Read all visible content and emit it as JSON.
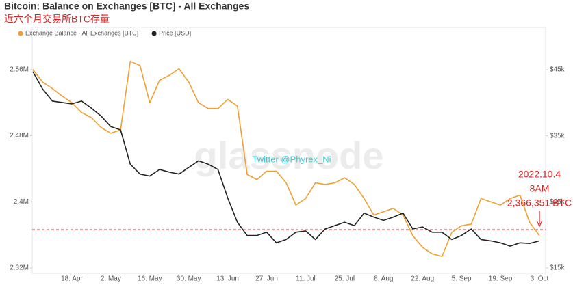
{
  "chart_data": {
    "type": "line",
    "title": "Bitcoin: Balance on Exchanges [BTC] - All Exchanges",
    "subtitle": "近六个月交易所BTC存量",
    "watermark": "glassnode",
    "annotations": [
      "Twitter @Phyrex_Ni",
      "2022.10.4",
      "8AM",
      "2,366,351 BTC"
    ],
    "reference_line": 2366351,
    "reference_color": "#e03030",
    "categories": [
      null,
      null,
      null,
      null,
      "18. Apr",
      null,
      null,
      null,
      "2. May",
      null,
      null,
      null,
      "16. May",
      null,
      null,
      null,
      "30. May",
      null,
      null,
      null,
      "13. Jun",
      null,
      null,
      null,
      "27. Jun",
      null,
      null,
      null,
      "11. Jul",
      null,
      null,
      null,
      "25. Jul",
      null,
      null,
      null,
      "8. Aug",
      null,
      null,
      null,
      "22. Aug",
      null,
      null,
      null,
      "5. Sep",
      null,
      null,
      null,
      "19. Sep",
      null,
      null,
      null,
      "3. Oct"
    ],
    "series": [
      {
        "name": "Exchange Balance - All Exchanges [BTC]",
        "color": "#f0a030",
        "axis": "y",
        "values": [
          2560000,
          2545000,
          2537000,
          2528000,
          2520000,
          2508000,
          2502000,
          2490000,
          2483000,
          2487000,
          2570000,
          2565000,
          2520000,
          2547000,
          2553000,
          2561000,
          2545000,
          2520000,
          2513000,
          2513000,
          2524000,
          2516000,
          2433000,
          2427000,
          2437000,
          2437000,
          2423000,
          2396000,
          2404000,
          2423000,
          2421000,
          2423000,
          2429000,
          2421000,
          2404000,
          2384000,
          2388000,
          2392000,
          2384000,
          2359000,
          2345000,
          2337000,
          2334000,
          2363000,
          2371000,
          2373000,
          2404000,
          2400000,
          2396000,
          2404000,
          2408000,
          2375000,
          2359000
        ]
      },
      {
        "name": "Price [USD]",
        "color": "#222222",
        "axis": "y2",
        "values": [
          44700,
          42100,
          40250,
          40050,
          39840,
          40250,
          39200,
          38000,
          36400,
          35900,
          30700,
          29200,
          28900,
          29900,
          29500,
          29200,
          30200,
          31200,
          30700,
          29900,
          25600,
          21900,
          19900,
          19900,
          20400,
          18800,
          19300,
          20400,
          20600,
          19300,
          20900,
          21400,
          21900,
          21400,
          23300,
          22700,
          22200,
          22700,
          23300,
          20900,
          21200,
          20400,
          20400,
          19300,
          19900,
          20900,
          19300,
          19100,
          18800,
          18300,
          18800,
          18700,
          19100
        ]
      }
    ],
    "ylim": [
      2320000,
      2607000
    ],
    "yticks": [
      {
        "value": 2320000,
        "label": "2.32M"
      },
      {
        "value": 2400000,
        "label": "2.4M"
      },
      {
        "value": 2480000,
        "label": "2.48M"
      },
      {
        "value": 2560000,
        "label": "2.56M"
      }
    ],
    "y2lim": [
      15000,
      50900
    ],
    "y2ticks": [
      {
        "value": 15000,
        "label": "$15k"
      },
      {
        "value": 25000,
        "label": "$25k"
      },
      {
        "value": 35000,
        "label": "$35k"
      },
      {
        "value": 45000,
        "label": "$45k"
      }
    ]
  }
}
